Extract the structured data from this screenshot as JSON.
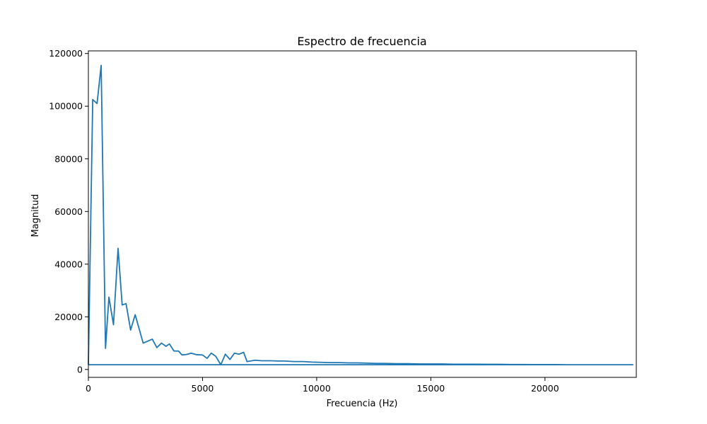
{
  "chart_data": {
    "type": "line",
    "title": "Espectro de frecuencia",
    "xlabel": "Frecuencia (Hz)",
    "ylabel": "Magnitud",
    "xlim": [
      0,
      24000
    ],
    "ylim": [
      -3000,
      121000
    ],
    "xticks": [
      0,
      5000,
      10000,
      15000,
      20000
    ],
    "xtick_labels": [
      "0",
      "5000",
      "10000",
      "15000",
      "20000"
    ],
    "yticks": [
      0,
      20000,
      40000,
      60000,
      80000,
      100000,
      120000
    ],
    "ytick_labels": [
      "0",
      "20000",
      "40000",
      "60000",
      "80000",
      "100000",
      "120000"
    ],
    "grid": false,
    "color": "#1f77b4",
    "series": [
      {
        "x": [
          0,
          190,
          380,
          560,
          750,
          900,
          1100,
          1300,
          1480,
          1650,
          1850,
          2050,
          2400,
          2800,
          3000,
          3200,
          3400,
          3550,
          3750,
          3950,
          4100,
          4300,
          4500,
          4750,
          5000,
          5200,
          5380,
          5580,
          5800,
          6000,
          6200,
          6400,
          6600,
          6800,
          6950,
          7300,
          7600,
          8000,
          8300,
          8600,
          9000,
          9400,
          9800,
          10200,
          10600,
          11000,
          11400,
          11800,
          12200,
          12600,
          13000,
          13500,
          14000,
          14500,
          15000,
          15500,
          16000,
          16500,
          17000,
          17500,
          18000,
          18500,
          19000,
          19500,
          20000,
          20500,
          21000,
          21500,
          22000,
          22500,
          23000,
          23850,
          23000,
          22000,
          21000,
          20000,
          18000,
          16000,
          14000,
          12000,
          10000,
          8000,
          6000,
          4000,
          2000,
          0
        ],
        "y": [
          1800,
          102500,
          101000,
          115500,
          8000,
          27500,
          17000,
          46000,
          24500,
          25000,
          15000,
          20800,
          10000,
          11500,
          8300,
          10000,
          8800,
          9700,
          7000,
          7000,
          5500,
          5700,
          6200,
          5600,
          5500,
          4200,
          6200,
          5000,
          1800,
          5800,
          3800,
          6200,
          5800,
          6500,
          3000,
          3500,
          3300,
          3300,
          3200,
          3200,
          3000,
          3000,
          2800,
          2700,
          2600,
          2600,
          2500,
          2500,
          2400,
          2300,
          2300,
          2200,
          2200,
          2100,
          2100,
          2100,
          2000,
          2000,
          2000,
          1950,
          1950,
          1900,
          1900,
          1850,
          1850,
          1850,
          1800,
          1800,
          1800,
          1800,
          1800,
          1800,
          1800,
          1800,
          1800,
          1800,
          1800,
          1800,
          1800,
          1800,
          1800,
          1800,
          1800,
          1800,
          1800,
          1800
        ]
      }
    ]
  }
}
